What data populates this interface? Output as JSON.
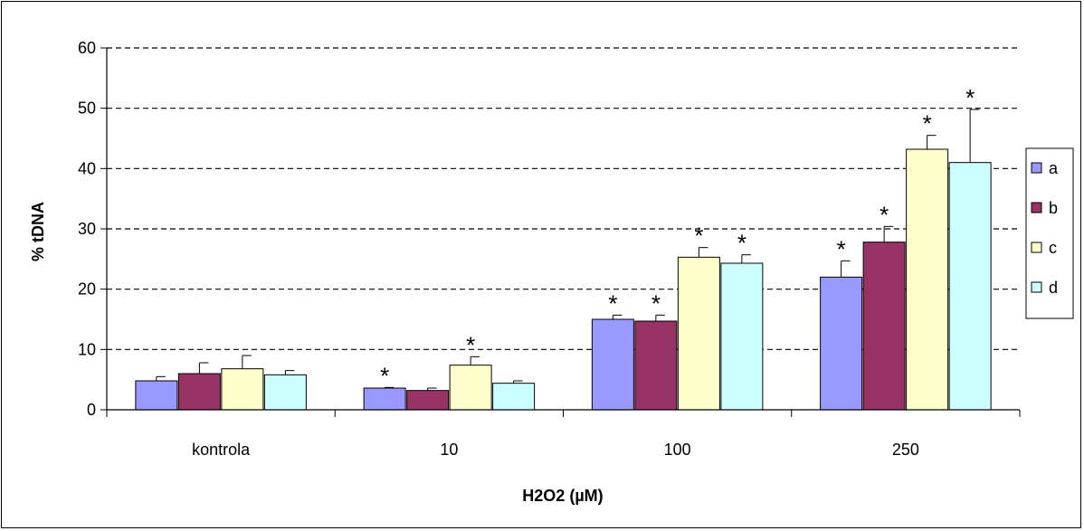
{
  "chart_data": {
    "type": "bar",
    "title": "",
    "xlabel": "H2O2 (µM)",
    "ylabel": "% tDNA",
    "ylim": [
      0,
      60
    ],
    "yticks": [
      0,
      10,
      20,
      30,
      40,
      50,
      60
    ],
    "grid": "horizontal dashed",
    "legend_position": "right",
    "categories": [
      "kontrola",
      "10",
      "100",
      "250"
    ],
    "series": [
      {
        "name": "a",
        "color": "#9999ff",
        "values": [
          4.8,
          3.6,
          15.0,
          22.0
        ],
        "errors": [
          0.7,
          0.1,
          0.7,
          2.7
        ],
        "significant": [
          false,
          true,
          true,
          true
        ]
      },
      {
        "name": "b",
        "color": "#993366",
        "values": [
          6.0,
          3.2,
          14.7,
          27.8
        ],
        "errors": [
          1.8,
          0.4,
          1.0,
          2.6
        ],
        "significant": [
          false,
          false,
          true,
          true
        ]
      },
      {
        "name": "c",
        "color": "#ffffcc",
        "values": [
          6.8,
          7.4,
          25.3,
          43.2
        ],
        "errors": [
          2.2,
          1.4,
          1.6,
          2.3
        ],
        "significant": [
          false,
          true,
          true,
          true
        ]
      },
      {
        "name": "d",
        "color": "#ccffff",
        "values": [
          5.8,
          4.4,
          24.3,
          41.0
        ],
        "errors": [
          0.7,
          0.4,
          1.4,
          8.8
        ],
        "significant": [
          false,
          false,
          true,
          true
        ]
      }
    ],
    "significance_marker": "*"
  }
}
